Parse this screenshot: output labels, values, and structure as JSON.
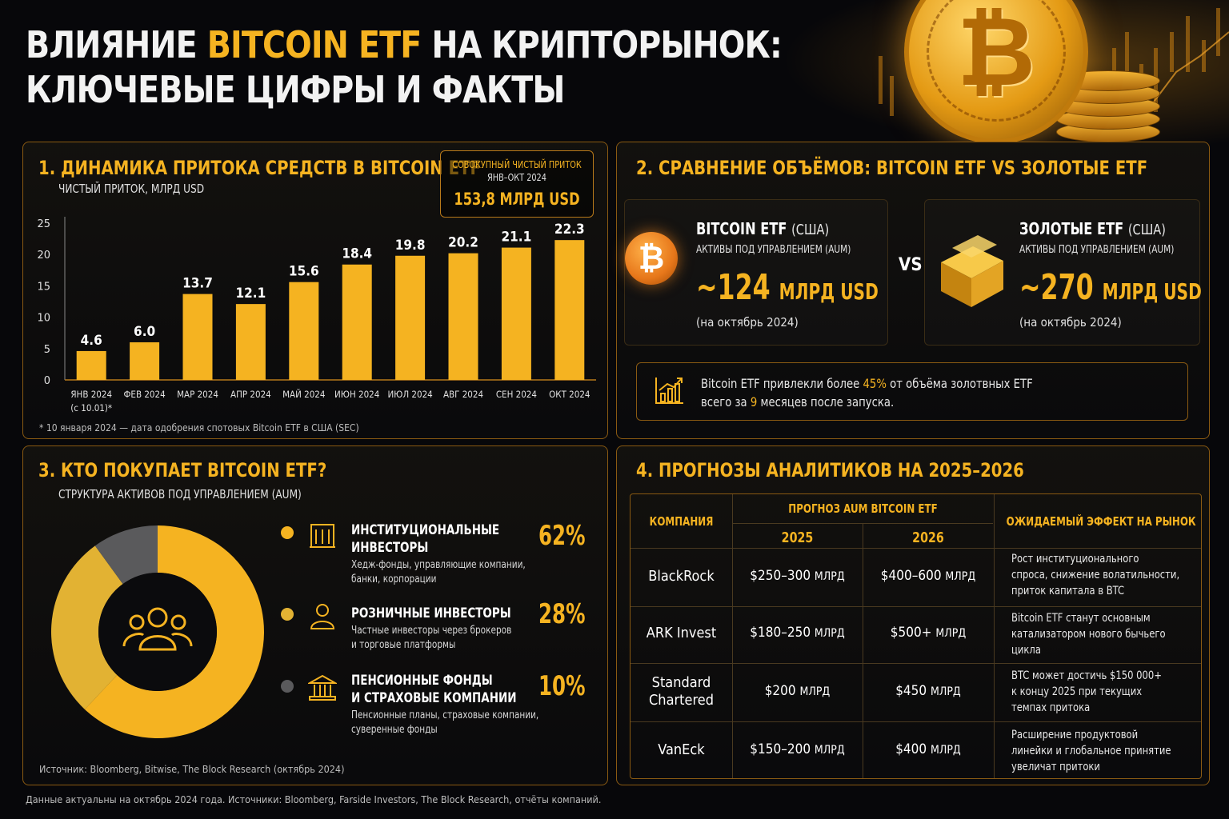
{
  "header": {
    "title_part1": "ВЛИЯНИЕ ",
    "title_highlight": "BITCOIN ETF",
    "title_part2": " НА КРИПТОРЫНОК:",
    "title_line2": "КЛЮЧЕВЫЕ ЦИФРЫ И ФАКТЫ"
  },
  "inflow": {
    "title": "1. ДИНАМИКА ПРИТОКА СРЕДСТВ В BITCOIN ETF",
    "subtitle": "ЧИСТЫЙ ПРИТОК, МЛРД USD",
    "total_label_1": "СОВОКУПНЫЙ ЧИСТЫЙ ПРИТОК",
    "total_label_2": "ЯНВ–ОКТ 2024",
    "total_value": "153,8 МЛРД USD",
    "footnote": "* 10 января 2024 — дата одобрения спотовых Bitcoin ETF в США (SEC)"
  },
  "chart_data": {
    "type": "bar",
    "categories": [
      "ЯНВ 2024",
      "ФЕВ 2024",
      "МАР 2024",
      "АПР 2024",
      "МАЙ 2024",
      "ИЮН 2024",
      "ИЮЛ 2024",
      "АВГ 2024",
      "СЕН 2024",
      "ОКТ 2024"
    ],
    "category_notes": [
      "(с 10.01)*",
      "",
      "",
      "",
      "",
      "",
      "",
      "",
      "",
      ""
    ],
    "values": [
      4.6,
      6.0,
      13.7,
      12.1,
      15.6,
      18.4,
      19.8,
      20.2,
      21.1,
      22.3
    ],
    "value_labels": [
      "4.6",
      "6.0",
      "13.7",
      "12.1",
      "15.6",
      "18.4",
      "19.8",
      "20.2",
      "21.1",
      "22.3"
    ],
    "yticks": [
      "0",
      "5",
      "10",
      "15",
      "20",
      "25"
    ],
    "ylim": [
      0,
      25
    ],
    "bar_color": "#f5b321"
  },
  "compare": {
    "title": "2. СРАВНЕНИЕ ОБЪЁМОВ: BITCOIN ETF VS ЗОЛОТЫЕ ETF",
    "btc_name": "BITCOIN ETF",
    "btc_country": "(США)",
    "btc_aum_label": "АКТИВЫ ПОД УПРАВЛЕНИЕМ (AUM)",
    "btc_value": "~124",
    "btc_unit": "МЛРД USD",
    "btc_date": "(на октябрь 2024)",
    "btc_symbol": "₿",
    "vs": "VS",
    "gold_name": "ЗОЛОТЫЕ ETF",
    "gold_country": "(США)",
    "gold_aum_label": "АКТИВЫ ПОД УПРАВЛЕНИЕМ (AUM)",
    "gold_value": "~270",
    "gold_unit": "МЛРД USD",
    "gold_date": "(на октябрь 2024)",
    "note_1a": "Bitcoin ETF привлекли более ",
    "note_1b": "45%",
    "note_1c": " от объёма золотвных ETF",
    "note_2a": "всего за ",
    "note_2b": "9",
    "note_2c": " месяцев после запуска."
  },
  "buyers": {
    "title": "3. КТО ПОКУПАЕТ BITCOIN ETF?",
    "subtitle": "СТРУКТУРА АКТИВОВ ПОД УПРАВЛЕНИЕМ (AUM)",
    "segments": [
      {
        "title1": "ИНСТИТУЦИОНАЛЬНЫЕ",
        "title2": "ИНВЕСТОРЫ",
        "desc1": "Хедж-фонды, управляющие компании,",
        "desc2": "банки, корпорации",
        "pct": "62%",
        "value": 62,
        "color": "#f5b321"
      },
      {
        "title1": "РОЗНИЧНЫЕ ИНВЕСТОРЫ",
        "title2": "",
        "desc1": "Частные инвесторы через брокеров",
        "desc2": "и торговые платформы",
        "pct": "28%",
        "value": 28,
        "color": "#e2b233"
      },
      {
        "title1": "ПЕНСИОННЫЕ ФОНДЫ",
        "title2": "И СТРАХОВЫЕ КОМПАНИИ",
        "desc1": "Пенсионные планы, страховые компании,",
        "desc2": "суверенные фонды",
        "pct": "10%",
        "value": 10,
        "color": "#5a5a5c"
      }
    ],
    "source": "Источник: Bloomberg, Bitwise, The Block Research (октябрь 2024)"
  },
  "forecast": {
    "title": "4. ПРОГНОЗЫ АНАЛИТИКОВ НА 2025–2026",
    "col_company": "КОМПАНИЯ",
    "col_forecast": "ПРОГНОЗ AUM BITCOIN ETF",
    "col_2025": "2025",
    "col_2026": "2026",
    "col_effect": "ОЖИДАЕМЫЙ ЭФФЕКТ НА РЫНОК",
    "rows": [
      {
        "company1": "BlackRock",
        "company2": "",
        "v2025": "$250–300",
        "v2026": "$400–600",
        "unit": "МЛРД",
        "eff1": "Рост институционального",
        "eff2": "спроса, снижение волатильности,",
        "eff3": "приток капитала в BTC"
      },
      {
        "company1": "ARK Invest",
        "company2": "",
        "v2025": "$180–250",
        "v2026": "$500+",
        "unit": "МЛРД",
        "eff1": "Bitcoin ETF станут основным",
        "eff2": "катализатором нового бычьего",
        "eff3": "цикла"
      },
      {
        "company1": "Standard",
        "company2": "Chartered",
        "v2025": "$200",
        "v2026": "$450",
        "unit": "МЛРД",
        "eff1": "BTC может достичь $150 000+",
        "eff2": "к концу 2025 при текущих",
        "eff3": "темпах притока"
      },
      {
        "company1": "VanEck",
        "company2": "",
        "v2025": "$150–200",
        "v2026": "$400",
        "unit": "МЛРД",
        "eff1": "Расширение продуктовой",
        "eff2": "линейки и глобальное принятие",
        "eff3": "увеличат притоки"
      }
    ]
  },
  "bottom_note": "Данные актуальны на октябрь 2024 года. Источники: Bloomberg, Farside Investors, The Block Research, отчёты компаний.",
  "colors": {
    "accent": "#f5b321",
    "background": "#07070a",
    "border": "#8a5a12"
  }
}
